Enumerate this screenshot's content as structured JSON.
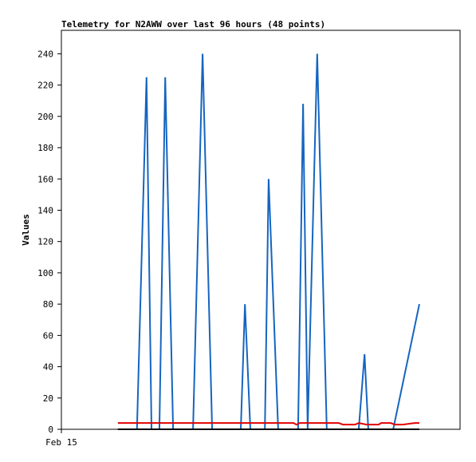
{
  "chart_data": {
    "type": "line",
    "title": "Telemetry for N2AWW over last 96 hours (48 points)",
    "y_label": "Values",
    "xlim": [
      0,
      96
    ],
    "xticks": [
      {
        "value": 0,
        "label": "Feb 15"
      }
    ],
    "ylim": [
      0,
      255
    ],
    "yticks": [
      0,
      20,
      40,
      60,
      80,
      100,
      120,
      140,
      160,
      180,
      200,
      220,
      240
    ],
    "series": [
      {
        "color": "#1565c0",
        "x": [
          13.6,
          18.2,
          20.5,
          21.7,
          23.6,
          25.0,
          26.9,
          31.7,
          34.0,
          36.3,
          43.2,
          44.2,
          45.5,
          49.0,
          49.9,
          52.2,
          57.0,
          58.2,
          59.3,
          61.6,
          63.9,
          71.6,
          73.0,
          73.9,
          79.9,
          86.2
        ],
        "values": [
          0,
          0,
          225,
          0,
          0,
          225,
          0,
          0,
          240,
          0,
          0,
          80,
          0,
          0,
          160,
          0,
          0,
          208,
          0,
          240,
          0,
          0,
          48,
          0,
          0,
          80
        ]
      },
      {
        "color": "#e00000",
        "x": [
          13.6,
          55.9,
          56.6,
          57.4,
          66.8,
          67.8,
          70.7,
          71.6,
          73.5,
          76.4,
          77.0,
          79.3,
          80.3,
          82.2,
          85.1,
          86.2
        ],
        "values": [
          4,
          4,
          3,
          4,
          4,
          3,
          3,
          4,
          3,
          3,
          4,
          4,
          3,
          3,
          4,
          4
        ]
      },
      {
        "color": "#000000",
        "x": [
          13.6,
          86.2
        ],
        "values": [
          0,
          0
        ]
      }
    ]
  }
}
